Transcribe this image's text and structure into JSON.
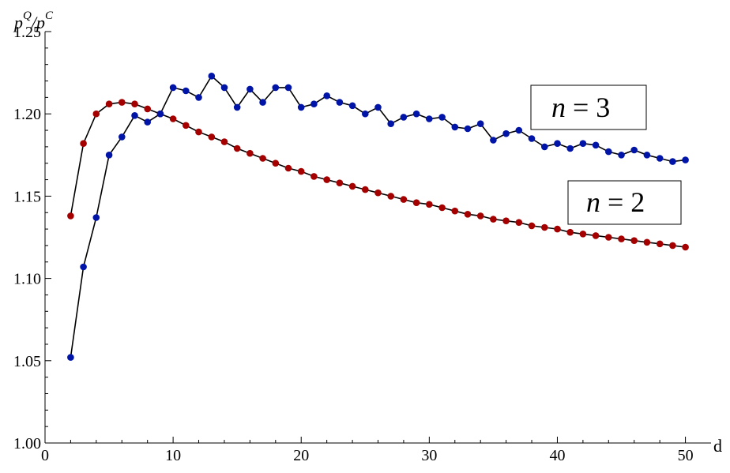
{
  "chart_data": {
    "type": "line",
    "title": "",
    "xlabel": "d",
    "ylabel": {
      "base1": "p",
      "sup1": "Q",
      "slash": "/",
      "base2": "p",
      "sup2": "C"
    },
    "xlim": [
      0,
      52
    ],
    "ylim": [
      1.0,
      1.25
    ],
    "x_ticks": [
      0,
      10,
      20,
      30,
      40,
      50
    ],
    "x_tick_labels": [
      "0",
      "10",
      "20",
      "30",
      "40",
      "50"
    ],
    "y_ticks": [
      1.0,
      1.05,
      1.1,
      1.15,
      1.2,
      1.25
    ],
    "y_tick_labels": [
      "1.00",
      "1.05",
      "1.10",
      "1.15",
      "1.20",
      "1.25"
    ],
    "grid": false,
    "series": [
      {
        "name": "n = 2",
        "color": "#a50000",
        "x": [
          2,
          3,
          4,
          5,
          6,
          7,
          8,
          9,
          10,
          11,
          12,
          13,
          14,
          15,
          16,
          17,
          18,
          19,
          20,
          21,
          22,
          23,
          24,
          25,
          26,
          27,
          28,
          29,
          30,
          31,
          32,
          33,
          34,
          35,
          36,
          37,
          38,
          39,
          40,
          41,
          42,
          43,
          44,
          45,
          46,
          47,
          48,
          49,
          50
        ],
        "y": [
          1.138,
          1.182,
          1.2,
          1.206,
          1.207,
          1.206,
          1.203,
          1.2,
          1.197,
          1.193,
          1.189,
          1.186,
          1.183,
          1.179,
          1.176,
          1.173,
          1.17,
          1.167,
          1.165,
          1.162,
          1.16,
          1.158,
          1.156,
          1.154,
          1.152,
          1.15,
          1.148,
          1.146,
          1.145,
          1.143,
          1.141,
          1.139,
          1.138,
          1.136,
          1.135,
          1.134,
          1.132,
          1.131,
          1.13,
          1.128,
          1.127,
          1.126,
          1.125,
          1.124,
          1.123,
          1.122,
          1.121,
          1.12,
          1.119
        ]
      },
      {
        "name": "n = 3",
        "color": "#0014a8",
        "x": [
          2,
          3,
          4,
          5,
          6,
          7,
          8,
          9,
          10,
          11,
          12,
          13,
          14,
          15,
          16,
          17,
          18,
          19,
          20,
          21,
          22,
          23,
          24,
          25,
          26,
          27,
          28,
          29,
          30,
          31,
          32,
          33,
          34,
          35,
          36,
          37,
          38,
          39,
          40,
          41,
          42,
          43,
          44,
          45,
          46,
          47,
          48,
          49,
          50
        ],
        "y": [
          1.052,
          1.107,
          1.137,
          1.175,
          1.186,
          1.199,
          1.195,
          1.2,
          1.216,
          1.214,
          1.21,
          1.223,
          1.216,
          1.204,
          1.215,
          1.207,
          1.216,
          1.216,
          1.204,
          1.206,
          1.211,
          1.207,
          1.205,
          1.2,
          1.204,
          1.194,
          1.198,
          1.2,
          1.197,
          1.198,
          1.192,
          1.191,
          1.194,
          1.184,
          1.188,
          1.19,
          1.185,
          1.18,
          1.182,
          1.179,
          1.182,
          1.181,
          1.177,
          1.175,
          1.178,
          1.175,
          1.173,
          1.171,
          1.172
        ]
      }
    ],
    "legend": [
      {
        "label_italic": "n",
        "label_rest": " = 3",
        "placement": "upper-right"
      },
      {
        "label_italic": "n",
        "label_rest": " = 2",
        "placement": "right"
      }
    ]
  }
}
